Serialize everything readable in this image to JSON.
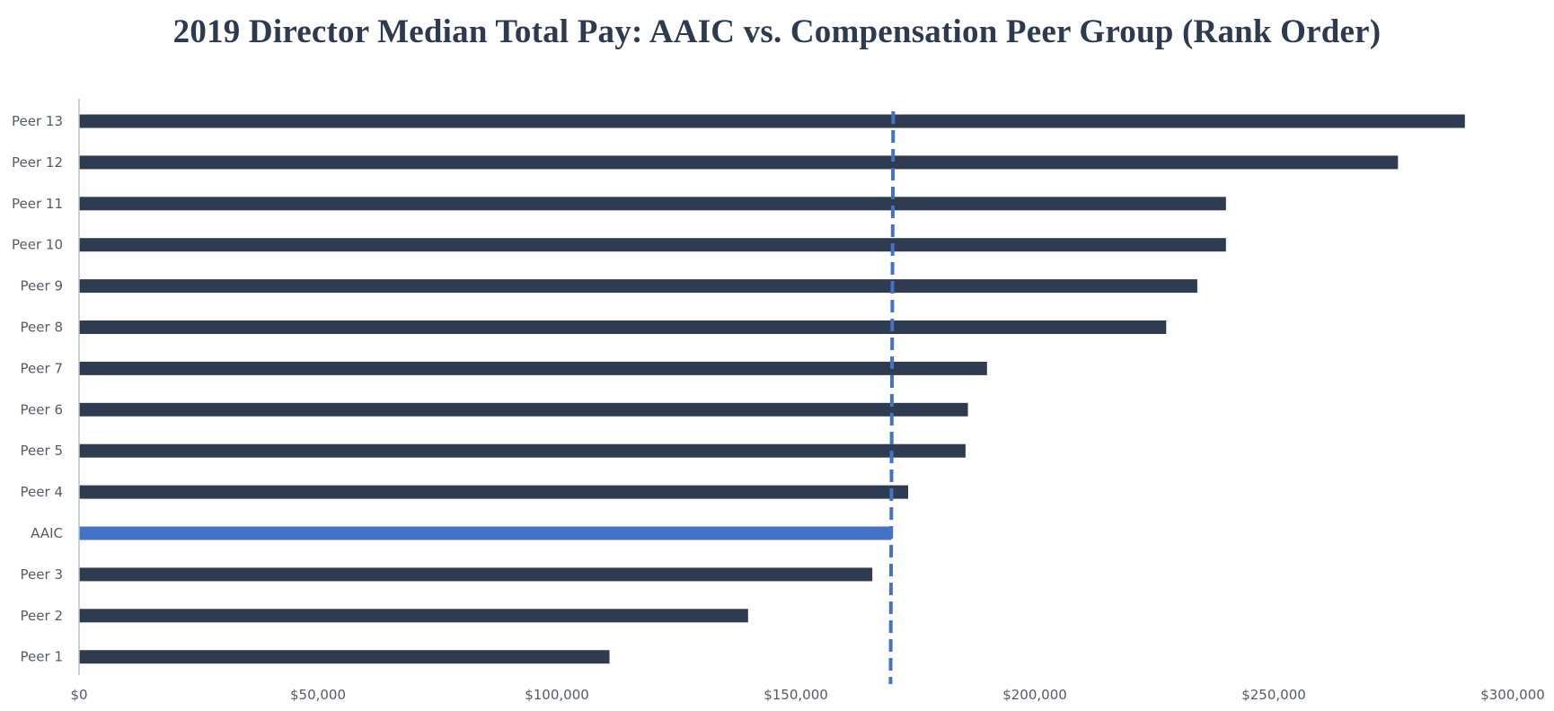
{
  "chart_data": {
    "type": "bar",
    "orientation": "horizontal",
    "title": "2019 Director Median Total Pay: AAIC vs. Compensation Peer Group (Rank Order)",
    "xlabel": "",
    "ylabel": "",
    "categories": [
      "Peer 13",
      "Peer 12",
      "Peer 11",
      "Peer 10",
      "Peer 9",
      "Peer 8",
      "Peer 7",
      "Peer 6",
      "Peer 5",
      "Peer 4",
      "AAIC",
      "Peer 3",
      "Peer 2",
      "Peer 1"
    ],
    "values": [
      290000,
      276000,
      240000,
      240000,
      234000,
      227500,
      190000,
      186000,
      185500,
      173500,
      170000,
      166000,
      140000,
      111000
    ],
    "highlight_category": "AAIC",
    "reference_line": {
      "value": 170000,
      "style": "dashed"
    },
    "xlim": [
      0,
      300000
    ],
    "x_ticks": [
      0,
      50000,
      100000,
      150000,
      200000,
      250000,
      300000
    ],
    "x_tick_labels": [
      "$0",
      "$50,000",
      "$100,000",
      "$150,000",
      "$200,000",
      "$250,000",
      "$300,000"
    ],
    "grid": false,
    "legend": "none",
    "colors": {
      "bar": "#2f3b50",
      "highlight": "#4472c4",
      "reference_line": "#4472c4",
      "axis": "#bfbfbf",
      "title": "#2d3a4f",
      "tick_text": "#555b64"
    }
  }
}
